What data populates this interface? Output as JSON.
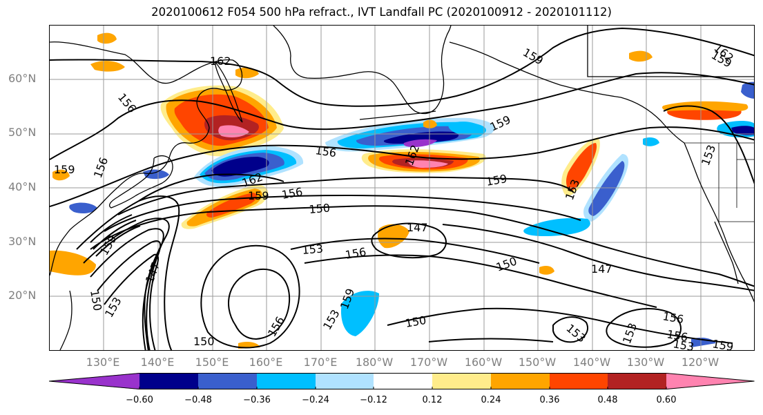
{
  "title": "2020100612 F054 500 hPa refract., IVT Landfall PC (2020100912 - 2020101112)",
  "latitude_labels": [
    "60°N",
    "50°N",
    "40°N",
    "30°N",
    "20°N"
  ],
  "longitude_labels": [
    "130°E",
    "140°E",
    "150°E",
    "160°E",
    "170°E",
    "180°W",
    "170°W",
    "160°W",
    "150°W",
    "140°W",
    "130°W",
    "120°W"
  ],
  "contour_labels": [
    "162",
    "159",
    "156",
    "159",
    "156",
    "162",
    "159",
    "156",
    "150",
    "147",
    "153",
    "156",
    "147",
    "150",
    "153",
    "159",
    "162",
    "150",
    "156",
    "150",
    "159",
    "159",
    "156",
    "153",
    "147",
    "153",
    "156",
    "153",
    "156",
    "153",
    "159",
    "162",
    "159",
    "159",
    "153",
    "150",
    "153"
  ],
  "colorbar": {
    "ticks": [
      "−0.60",
      "−0.48",
      "−0.36",
      "−0.24",
      "−0.12",
      "0.12",
      "0.24",
      "0.36",
      "0.48",
      "0.60"
    ],
    "colors": [
      "#9932cc",
      "#00008b",
      "#3a5fcd",
      "#00bfff",
      "#b0e2ff",
      "#ffffff",
      "#ffec8b",
      "#ffa500",
      "#ff4500",
      "#b22222",
      "#ff83b0"
    ]
  }
}
